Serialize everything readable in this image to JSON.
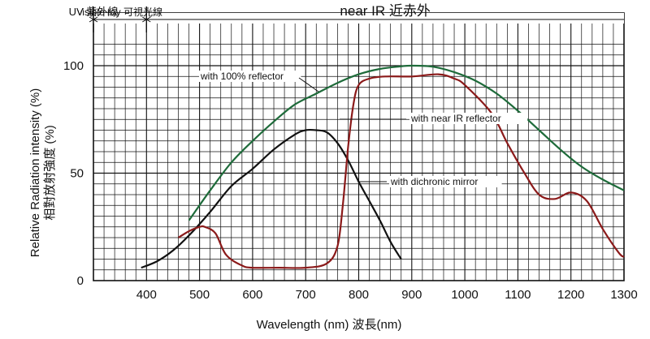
{
  "chart_data": {
    "type": "line",
    "xlabel": "Wavelength (nm) 波長(nm)",
    "ylabel_lines": [
      "Relative Radiation intensity (%)",
      "相對放射強度 (%)"
    ],
    "xlim": [
      300,
      1300
    ],
    "ylim": [
      0,
      100
    ],
    "x_ticks": [
      400,
      500,
      600,
      700,
      800,
      900,
      1000,
      1100,
      1200,
      1300
    ],
    "y_ticks": [
      0,
      50,
      100
    ],
    "grid": true,
    "bands": [
      {
        "label": "UV 紫外線",
        "from": 300,
        "to": 300
      },
      {
        "label": "visible ray 可視光線",
        "from": 300,
        "to": 400
      },
      {
        "label": "near IR 近赤外",
        "from": 400,
        "to": 1300
      }
    ],
    "band_boundaries": [
      300,
      400
    ],
    "series": [
      {
        "name": "with 100% reflector",
        "color": "#1e6b3a",
        "x": [
          480,
          520,
          560,
          600,
          640,
          680,
          720,
          760,
          800,
          840,
          880,
          900,
          940,
          980,
          1020,
          1060,
          1100,
          1140,
          1180,
          1220,
          1260,
          1300
        ],
        "y": [
          28,
          42,
          55,
          65,
          74,
          82,
          87,
          92,
          96,
          98.5,
          99.7,
          100,
          99.5,
          97,
          93,
          87,
          79,
          70,
          61,
          53,
          47,
          42
        ]
      },
      {
        "name": "with dichronic mirror",
        "color": "#111111",
        "x": [
          390,
          420,
          450,
          480,
          520,
          560,
          600,
          640,
          680,
          700,
          720,
          740,
          760,
          780,
          800,
          820,
          840,
          860,
          880
        ],
        "y": [
          6,
          9,
          14,
          21,
          32,
          44,
          52,
          61,
          68,
          70,
          70,
          69,
          64,
          56,
          46,
          37,
          28,
          18,
          10
        ]
      },
      {
        "name": "with near IR reflector",
        "color": "#8b1a1a",
        "x": [
          460,
          480,
          500,
          510,
          530,
          550,
          580,
          600,
          650,
          700,
          740,
          760,
          770,
          780,
          790,
          800,
          820,
          850,
          900,
          950,
          980,
          1000,
          1050,
          1080,
          1110,
          1140,
          1170,
          1200,
          1230,
          1260,
          1290,
          1300
        ],
        "y": [
          20,
          23,
          25,
          25,
          22,
          12,
          7,
          6,
          6,
          6,
          8,
          16,
          35,
          62,
          82,
          91,
          94,
          95,
          95,
          96,
          94,
          91,
          78,
          64,
          51,
          40,
          38,
          41,
          37,
          24,
          13,
          11
        ]
      }
    ],
    "annotations": [
      {
        "text": "with 100% reflector",
        "x": 640,
        "y": 91,
        "series": "with 100% reflector"
      },
      {
        "text": "with near IR reflector",
        "x": 1000,
        "y": 76,
        "series": "with near IR reflector"
      },
      {
        "text": "with dichronic mirror",
        "x": 900,
        "y": 46,
        "series": "with dichronic mirror"
      }
    ]
  }
}
